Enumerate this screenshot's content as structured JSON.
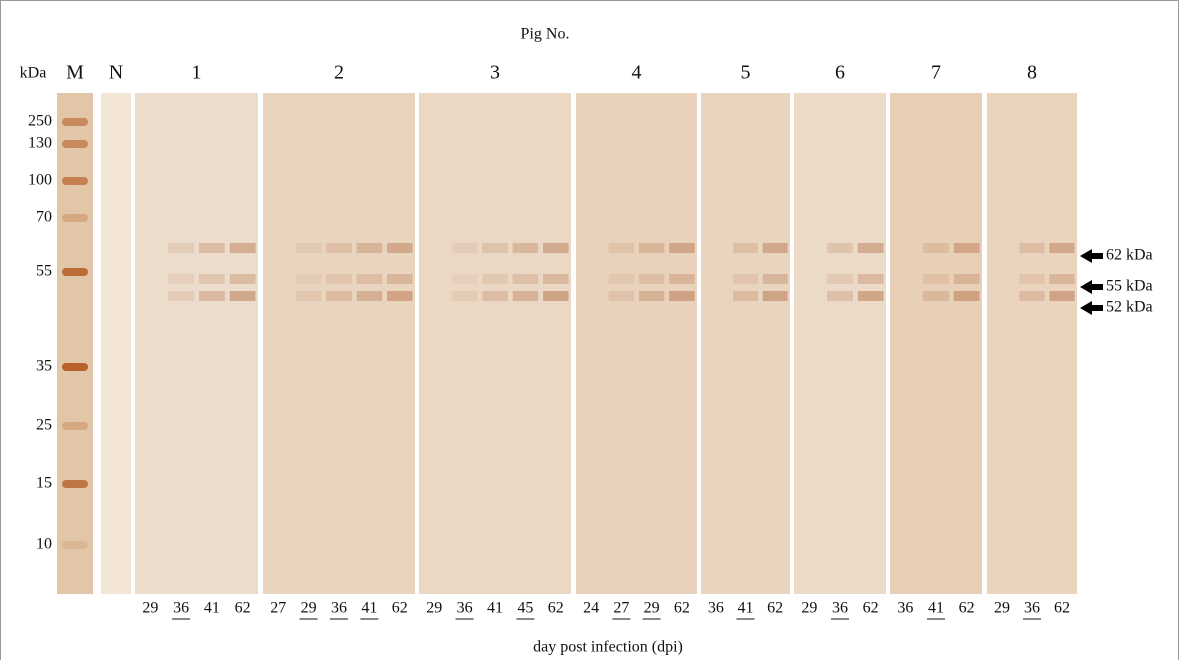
{
  "title": "Pig No.",
  "axis_title": "kDa",
  "marker_lane": "M",
  "negative_lane": "N",
  "marker_sizes": [
    250,
    130,
    100,
    70,
    55,
    35,
    25,
    15,
    10
  ],
  "pigs": [
    {
      "label": "1",
      "days": [
        {
          "text": "29",
          "underlined": false
        },
        {
          "text": "36",
          "underlined": true
        },
        {
          "text": "41",
          "underlined": false
        },
        {
          "text": "62",
          "underlined": false
        }
      ]
    },
    {
      "label": "2",
      "days": [
        {
          "text": "27",
          "underlined": false
        },
        {
          "text": "29",
          "underlined": true
        },
        {
          "text": "36",
          "underlined": true
        },
        {
          "text": "41",
          "underlined": true
        },
        {
          "text": "62",
          "underlined": false
        }
      ]
    },
    {
      "label": "3",
      "days": [
        {
          "text": "29",
          "underlined": false
        },
        {
          "text": "36",
          "underlined": true
        },
        {
          "text": "41",
          "underlined": false
        },
        {
          "text": "45",
          "underlined": true
        },
        {
          "text": "62",
          "underlined": false
        }
      ]
    },
    {
      "label": "4",
      "days": [
        {
          "text": "24",
          "underlined": false
        },
        {
          "text": "27",
          "underlined": true
        },
        {
          "text": "29",
          "underlined": true
        },
        {
          "text": "62",
          "underlined": false
        }
      ]
    },
    {
      "label": "5",
      "days": [
        {
          "text": "36",
          "underlined": false
        },
        {
          "text": "41",
          "underlined": true
        },
        {
          "text": "62",
          "underlined": false
        }
      ]
    },
    {
      "label": "6",
      "days": [
        {
          "text": "29",
          "underlined": false
        },
        {
          "text": "36",
          "underlined": true
        },
        {
          "text": "62",
          "underlined": false
        }
      ]
    },
    {
      "label": "7",
      "days": [
        {
          "text": "36",
          "underlined": false
        },
        {
          "text": "41",
          "underlined": true
        },
        {
          "text": "62",
          "underlined": false
        }
      ]
    },
    {
      "label": "8",
      "days": [
        {
          "text": "29",
          "underlined": false
        },
        {
          "text": "36",
          "underlined": true
        },
        {
          "text": "62",
          "underlined": false
        }
      ]
    }
  ],
  "band_labels": [
    "62 kDa",
    "55 kDa",
    "52 kDa"
  ],
  "x_label": "day post infection (dpi)"
}
